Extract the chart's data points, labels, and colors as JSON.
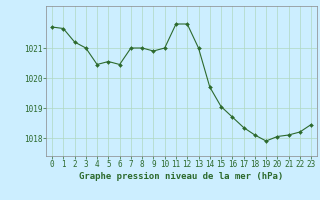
{
  "x": [
    0,
    1,
    2,
    3,
    4,
    5,
    6,
    7,
    8,
    9,
    10,
    11,
    12,
    13,
    14,
    15,
    16,
    17,
    18,
    19,
    20,
    21,
    22,
    23
  ],
  "y": [
    1021.7,
    1021.65,
    1021.2,
    1021.0,
    1020.45,
    1020.55,
    1020.45,
    1021.0,
    1021.0,
    1020.9,
    1021.0,
    1021.8,
    1021.8,
    1021.0,
    1019.7,
    1019.05,
    1018.7,
    1018.35,
    1018.1,
    1017.9,
    1018.05,
    1018.1,
    1018.2,
    1018.45
  ],
  "line_color": "#2d6a2d",
  "marker": "D",
  "marker_size": 2.0,
  "bg_color": "#cceeff",
  "grid_color": "#b0d8c0",
  "ylabel_ticks": [
    1018,
    1019,
    1020,
    1021
  ],
  "xlabel_ticks": [
    0,
    1,
    2,
    3,
    4,
    5,
    6,
    7,
    8,
    9,
    10,
    11,
    12,
    13,
    14,
    15,
    16,
    17,
    18,
    19,
    20,
    21,
    22,
    23
  ],
  "xlabel": "Graphe pression niveau de la mer (hPa)",
  "ylim": [
    1017.4,
    1022.4
  ],
  "xlim": [
    -0.5,
    23.5
  ],
  "tick_color": "#2d6a2d",
  "label_fontsize": 5.5,
  "xlabel_fontsize": 6.5
}
